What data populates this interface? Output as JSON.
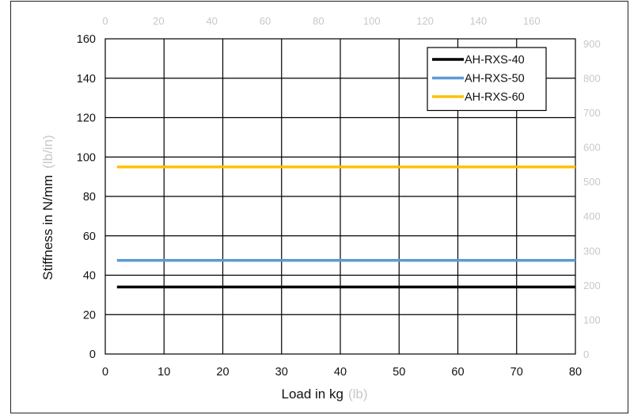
{
  "chart_data": {
    "type": "line",
    "xlabel": "Load  in kg",
    "xlabel_unit": "(lb)",
    "ylabel": "Stiffness in N/mm",
    "ylabel_unit": "(lb/in)",
    "xlim": [
      0,
      80
    ],
    "ylim": [
      0,
      160
    ],
    "x_ticks": [
      "0",
      "10",
      "20",
      "30",
      "40",
      "50",
      "60",
      "70",
      "80"
    ],
    "y_ticks": [
      "0",
      "20",
      "40",
      "60",
      "80",
      "100",
      "120",
      "140",
      "160"
    ],
    "x2_ticks": [
      "0",
      "20",
      "40",
      "60",
      "80",
      "100",
      "120",
      "140",
      "160"
    ],
    "x2lim": [
      0,
      176.4
    ],
    "y2_ticks": [
      "0",
      "100",
      "200",
      "300",
      "400",
      "500",
      "600",
      "700",
      "800",
      "900"
    ],
    "y2lim": [
      0,
      913.6
    ],
    "grid": true,
    "legend_position": "top-right",
    "series": [
      {
        "name": "AH-RXS-40",
        "color": "#000000",
        "x": [
          2,
          80
        ],
        "y": [
          34,
          34
        ]
      },
      {
        "name": "AH-RXS-50",
        "color": "#5b9bd5",
        "x": [
          2,
          80
        ],
        "y": [
          47.5,
          47.5
        ]
      },
      {
        "name": "AH-RXS-60",
        "color": "#ffc000",
        "x": [
          2,
          80
        ],
        "y": [
          95,
          95
        ]
      }
    ]
  }
}
